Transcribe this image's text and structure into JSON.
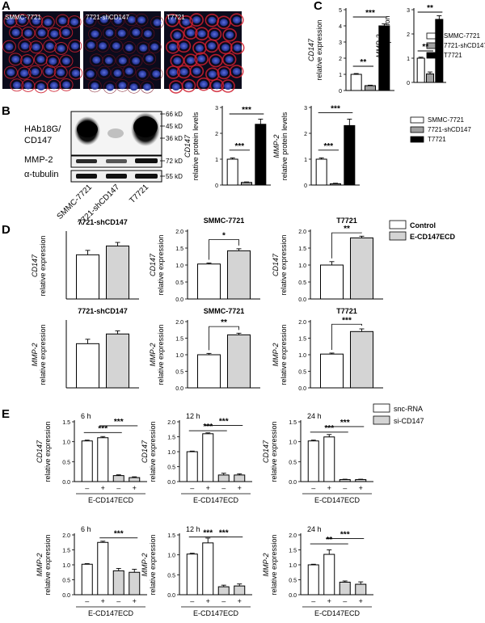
{
  "panels": {
    "A": "A",
    "B": "B",
    "C": "C",
    "D": "D",
    "E": "E"
  },
  "colors": {
    "white": "#ffffff",
    "gray": "#a0a0a0",
    "gray_light": "#d4d4d4",
    "black": "#000000"
  },
  "micrographs": [
    {
      "label": "SMMC-7721"
    },
    {
      "label": "7721-shCD147"
    },
    {
      "label": "T7721"
    }
  ],
  "western_blot": {
    "rows": [
      "HAb18G/",
      "CD147",
      "MMP-2",
      "α-tubulin"
    ],
    "markers": [
      "66 kD",
      "45 kD",
      "36 kD",
      "72 kD",
      "55 kD"
    ],
    "lanes": [
      "SMMC-7721",
      "7721-shCD147",
      "T7721"
    ]
  },
  "legends": {
    "C": {
      "items": [
        {
          "label": "SMMC-7721",
          "color": "#ffffff"
        },
        {
          "label": "7721-shCD147",
          "color": "#a0a0a0"
        },
        {
          "label": "T7721",
          "color": "#000000"
        }
      ]
    },
    "B": {
      "items": [
        {
          "label": "SMMC-7721",
          "color": "#ffffff"
        },
        {
          "label": "7721-shCD147",
          "color": "#a0a0a0"
        },
        {
          "label": "T7721",
          "color": "#000000"
        }
      ]
    },
    "D": {
      "items": [
        {
          "label": "Control",
          "color": "#ffffff"
        },
        {
          "label": "E-CD147ECD",
          "color": "#d4d4d4"
        }
      ]
    },
    "E": {
      "items": [
        {
          "label": "snc-RNA",
          "color": "#ffffff"
        },
        {
          "label": "si-CD147",
          "color": "#d4d4d4"
        }
      ]
    }
  },
  "x_group_label": "E-CD147ECD",
  "x_signs": [
    "–",
    "+",
    "–",
    "+"
  ],
  "chart_data": [
    {
      "id": "C1",
      "type": "bar",
      "ylabel": [
        "CD147",
        "relative expression"
      ],
      "ylim": [
        0,
        5
      ],
      "yticks": [
        0,
        1,
        2,
        3,
        4,
        5
      ],
      "values": [
        1.0,
        0.3,
        4.0
      ],
      "errors": [
        0.05,
        0.03,
        0.12
      ],
      "colors": [
        "#ffffff",
        "#a0a0a0",
        "#000000"
      ],
      "sig": [
        {
          "from": 0,
          "to": 1,
          "label": "**",
          "y": 1.5
        },
        {
          "from": 0,
          "to": 2,
          "label": "***",
          "y": 4.55
        }
      ]
    },
    {
      "id": "C2",
      "type": "bar",
      "ylabel": [
        "MMP-2",
        "relative expression"
      ],
      "ylim": [
        0,
        3
      ],
      "yticks": [
        0,
        1,
        2,
        3
      ],
      "values": [
        1.0,
        0.35,
        2.6
      ],
      "errors": [
        0.04,
        0.08,
        0.15
      ],
      "colors": [
        "#ffffff",
        "#a0a0a0",
        "#000000"
      ],
      "sig": [
        {
          "from": 0,
          "to": 1,
          "label": "**",
          "y": 1.3
        },
        {
          "from": 0,
          "to": 2,
          "label": "**",
          "y": 2.9
        }
      ]
    },
    {
      "id": "B1",
      "type": "bar",
      "ylabel": [
        "CD147",
        "relative protein levels"
      ],
      "ylim": [
        0,
        3
      ],
      "yticks": [
        0,
        1,
        2,
        3
      ],
      "values": [
        1.0,
        0.1,
        2.35
      ],
      "errors": [
        0.05,
        0.02,
        0.2
      ],
      "colors": [
        "#ffffff",
        "#a0a0a0",
        "#000000"
      ],
      "sig": [
        {
          "from": 0,
          "to": 1,
          "label": "***",
          "y": 1.35
        },
        {
          "from": 0,
          "to": 2,
          "label": "***",
          "y": 2.75
        }
      ]
    },
    {
      "id": "B2",
      "type": "bar",
      "ylabel": [
        "MMP-2",
        "relative protein levels"
      ],
      "ylim": [
        0,
        3
      ],
      "yticks": [
        0,
        1,
        2,
        3
      ],
      "values": [
        1.0,
        0.05,
        2.3
      ],
      "errors": [
        0.05,
        0.02,
        0.25
      ],
      "colors": [
        "#ffffff",
        "#a0a0a0",
        "#000000"
      ],
      "sig": [
        {
          "from": 0,
          "to": 1,
          "label": "***",
          "y": 1.35
        },
        {
          "from": 0,
          "to": 2,
          "label": "***",
          "y": 2.8
        }
      ]
    },
    {
      "id": "D1",
      "type": "bar",
      "title": "7721-shCD147",
      "ylabel": [
        "CD147",
        "relative expression"
      ],
      "ylim": [
        0,
        1.5
      ],
      "yticks": [],
      "values": [
        1.0,
        1.2
      ],
      "errors": [
        0.1,
        0.08
      ],
      "colors": [
        "#ffffff",
        "#d4d4d4"
      ],
      "sig": []
    },
    {
      "id": "D2",
      "type": "bar",
      "title": "SMMC-7721",
      "ylabel": [
        "CD147",
        "relative expression"
      ],
      "ylim": [
        0,
        2.0
      ],
      "yticks": [
        0,
        0.5,
        1.0,
        1.5,
        2.0
      ],
      "values": [
        1.03,
        1.42
      ],
      "errors": [
        0.03,
        0.06
      ],
      "colors": [
        "#ffffff",
        "#d4d4d4"
      ],
      "sig": [
        {
          "from": 0,
          "to": 1,
          "label": "*",
          "y": 1.75
        }
      ]
    },
    {
      "id": "D3",
      "type": "bar",
      "title": "T7721",
      "ylabel": [
        "CD147",
        "relative expression"
      ],
      "ylim": [
        0,
        2.0
      ],
      "yticks": [
        0,
        0.5,
        1.0,
        1.5,
        2.0
      ],
      "values": [
        1.0,
        1.8
      ],
      "errors": [
        0.1,
        0.05
      ],
      "colors": [
        "#ffffff",
        "#d4d4d4"
      ],
      "sig": [
        {
          "from": 0,
          "to": 1,
          "label": "**",
          "y": 1.95
        }
      ]
    },
    {
      "id": "D4",
      "type": "bar",
      "title": "7721-shCD147",
      "ylabel": [
        "MMP-2",
        "relative expression"
      ],
      "ylim": [
        0,
        1.5
      ],
      "yticks": [],
      "values": [
        1.0,
        1.22
      ],
      "errors": [
        0.1,
        0.07
      ],
      "colors": [
        "#ffffff",
        "#d4d4d4"
      ],
      "sig": []
    },
    {
      "id": "D5",
      "type": "bar",
      "title": "SMMC-7721",
      "ylabel": [
        "MMP-2",
        "relative expression"
      ],
      "ylim": [
        0,
        2.0
      ],
      "yticks": [
        0,
        0.5,
        1.0,
        1.5,
        2.0
      ],
      "values": [
        1.0,
        1.6
      ],
      "errors": [
        0.04,
        0.05
      ],
      "colors": [
        "#ffffff",
        "#d4d4d4"
      ],
      "sig": [
        {
          "from": 0,
          "to": 1,
          "label": "**",
          "y": 1.85
        }
      ]
    },
    {
      "id": "D6",
      "type": "bar",
      "title": "T7721",
      "ylabel": [
        "MMP-2",
        "relative expression"
      ],
      "ylim": [
        0,
        2.0
      ],
      "yticks": [
        0,
        0.5,
        1.0,
        1.5,
        2.0
      ],
      "values": [
        1.02,
        1.7
      ],
      "errors": [
        0.03,
        0.08
      ],
      "colors": [
        "#ffffff",
        "#d4d4d4"
      ],
      "sig": [
        {
          "from": 0,
          "to": 1,
          "label": "***",
          "y": 1.92
        }
      ]
    },
    {
      "id": "E1",
      "type": "bar",
      "title": "6 h",
      "ylabel": [
        "CD147",
        "relative expression"
      ],
      "ylim": [
        0,
        1.5
      ],
      "yticks": [
        0.0,
        0.5,
        1.0,
        1.5
      ],
      "values": [
        1.02,
        1.1,
        0.15,
        0.1
      ],
      "errors": [
        0.02,
        0.03,
        0.02,
        0.02
      ],
      "colors": [
        "#ffffff",
        "#ffffff",
        "#d4d4d4",
        "#d4d4d4"
      ],
      "sig": [
        {
          "from": 0,
          "to": 2,
          "label": "***",
          "y": 1.23
        },
        {
          "from": 1,
          "to": 3,
          "label": "***",
          "y": 1.4
        }
      ]
    },
    {
      "id": "E2",
      "type": "bar",
      "title": "12 h",
      "ylabel": [
        "CD147",
        "relative expression"
      ],
      "ylim": [
        0,
        2.0
      ],
      "yticks": [
        0.0,
        0.5,
        1.0,
        1.5,
        2.0
      ],
      "values": [
        1.0,
        1.6,
        0.22,
        0.22
      ],
      "errors": [
        0.02,
        0.03,
        0.06,
        0.04
      ],
      "colors": [
        "#ffffff",
        "#ffffff",
        "#d4d4d4",
        "#d4d4d4"
      ],
      "sig": [
        {
          "from": 0,
          "to": 2,
          "label": "***",
          "y": 1.7
        },
        {
          "from": 1,
          "to": 3,
          "label": "***",
          "y": 1.88
        }
      ]
    },
    {
      "id": "E3",
      "type": "bar",
      "title": "24 h",
      "ylabel": [
        "CD147",
        "relative expression"
      ],
      "ylim": [
        0,
        1.5
      ],
      "yticks": [
        0.0,
        0.5,
        1.0,
        1.5
      ],
      "values": [
        1.02,
        1.12,
        0.05,
        0.05
      ],
      "errors": [
        0.02,
        0.06,
        0.01,
        0.01
      ],
      "colors": [
        "#ffffff",
        "#ffffff",
        "#d4d4d4",
        "#d4d4d4"
      ],
      "sig": [
        {
          "from": 0,
          "to": 2,
          "label": "***",
          "y": 1.24
        },
        {
          "from": 1,
          "to": 3,
          "label": "***",
          "y": 1.38
        }
      ]
    },
    {
      "id": "E4",
      "type": "bar",
      "title": "6 h",
      "ylabel": [
        "MMP-2",
        "relative expression"
      ],
      "ylim": [
        0,
        2.0
      ],
      "yticks": [
        0.0,
        0.5,
        1.0,
        1.5,
        2.0
      ],
      "values": [
        1.02,
        1.75,
        0.8,
        0.75
      ],
      "errors": [
        0.02,
        0.04,
        0.08,
        0.1
      ],
      "colors": [
        "#ffffff",
        "#ffffff",
        "#d4d4d4",
        "#d4d4d4"
      ],
      "sig": [
        {
          "from": 1,
          "to": 3,
          "label": "***",
          "y": 1.9
        }
      ]
    },
    {
      "id": "E5",
      "type": "bar",
      "title": "12 h",
      "ylabel": [
        "MMP-2",
        "relative expression"
      ],
      "ylim": [
        0,
        1.5
      ],
      "yticks": [
        0.0,
        0.5,
        1.0,
        1.5
      ],
      "values": [
        1.02,
        1.3,
        0.2,
        0.22
      ],
      "errors": [
        0.02,
        0.12,
        0.04,
        0.05
      ],
      "colors": [
        "#ffffff",
        "#ffffff",
        "#d4d4d4",
        "#d4d4d4"
      ],
      "sig": [
        {
          "from": 0,
          "to": 2,
          "label": "***",
          "y": 1.45
        },
        {
          "from": 1,
          "to": 3,
          "label": "***",
          "y": 1.45
        }
      ]
    },
    {
      "id": "E6",
      "type": "bar",
      "title": "24 h",
      "ylabel": [
        "MMP-2",
        "relative expression"
      ],
      "ylim": [
        0,
        2.0
      ],
      "yticks": [
        0.0,
        0.5,
        1.0,
        1.5,
        2.0
      ],
      "values": [
        1.0,
        1.35,
        0.42,
        0.35
      ],
      "errors": [
        0.02,
        0.15,
        0.04,
        0.08
      ],
      "colors": [
        "#ffffff",
        "#ffffff",
        "#d4d4d4",
        "#d4d4d4"
      ],
      "sig": [
        {
          "from": 0,
          "to": 2,
          "label": "**",
          "y": 1.7
        },
        {
          "from": 1,
          "to": 3,
          "label": "***",
          "y": 1.88
        }
      ]
    }
  ]
}
